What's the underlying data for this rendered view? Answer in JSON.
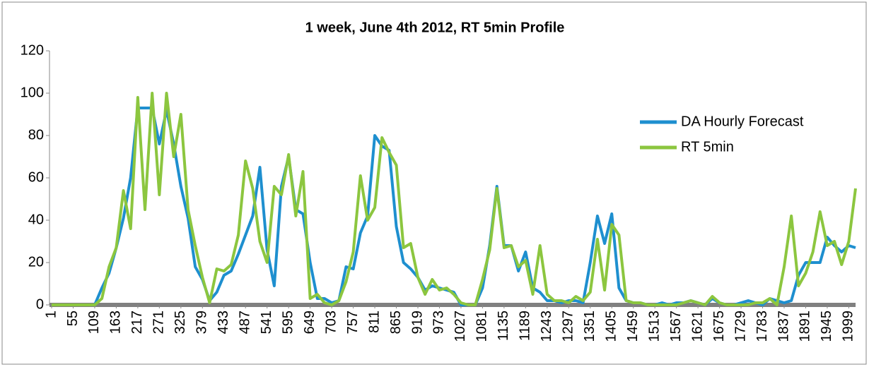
{
  "chart_data": {
    "type": "line",
    "title": "1 week, June 4th 2012, RT 5min Profile",
    "x": [
      1,
      19,
      37,
      55,
      73,
      91,
      109,
      127,
      145,
      163,
      181,
      199,
      217,
      235,
      253,
      271,
      289,
      307,
      325,
      343,
      361,
      379,
      397,
      415,
      433,
      451,
      469,
      487,
      505,
      523,
      541,
      559,
      577,
      595,
      613,
      631,
      649,
      667,
      685,
      703,
      721,
      739,
      757,
      775,
      793,
      811,
      829,
      847,
      865,
      883,
      901,
      919,
      937,
      955,
      973,
      991,
      1009,
      1027,
      1045,
      1063,
      1081,
      1099,
      1117,
      1135,
      1153,
      1171,
      1189,
      1207,
      1225,
      1243,
      1261,
      1279,
      1297,
      1315,
      1333,
      1351,
      1369,
      1387,
      1405,
      1423,
      1441,
      1459,
      1477,
      1495,
      1513,
      1531,
      1549,
      1567,
      1585,
      1603,
      1621,
      1639,
      1657,
      1675,
      1693,
      1711,
      1729,
      1747,
      1765,
      1783,
      1801,
      1819,
      1837,
      1855,
      1873,
      1891,
      1909,
      1927,
      1945,
      1963,
      1981,
      1999,
      2016
    ],
    "series": [
      {
        "name": "DA Hourly Forecast",
        "color": "#1e8fcf",
        "values": [
          0,
          0,
          0,
          0,
          0,
          0,
          0,
          8,
          15,
          27,
          41,
          60,
          93,
          93,
          93,
          76,
          92,
          76,
          56,
          41,
          18,
          12,
          2,
          6,
          14,
          16,
          24,
          33,
          42,
          65,
          26,
          9,
          56,
          70,
          45,
          43,
          20,
          3,
          3,
          1,
          2,
          18,
          17,
          34,
          42,
          80,
          75,
          73,
          37,
          20,
          17,
          13,
          7,
          9,
          8,
          7,
          6,
          0,
          0,
          0,
          8,
          28,
          56,
          28,
          28,
          16,
          25,
          8,
          6,
          2,
          2,
          1,
          2,
          2,
          1,
          20,
          42,
          29,
          43,
          8,
          2,
          1,
          1,
          0,
          0,
          1,
          0,
          1,
          1,
          2,
          1,
          0,
          3,
          1,
          0,
          0,
          1,
          2,
          1,
          0,
          3,
          2,
          1,
          2,
          14,
          20,
          20,
          20,
          32,
          28,
          25,
          28,
          27
        ]
      },
      {
        "name": "RT 5min",
        "color": "#8cc63f",
        "values": [
          0,
          0,
          0,
          0,
          0,
          0,
          0,
          3,
          18,
          27,
          54,
          36,
          98,
          45,
          100,
          52,
          100,
          70,
          90,
          45,
          28,
          13,
          1,
          17,
          16,
          19,
          33,
          68,
          55,
          30,
          20,
          56,
          52,
          71,
          42,
          63,
          3,
          5,
          1,
          0,
          2,
          11,
          25,
          61,
          40,
          46,
          79,
          72,
          66,
          27,
          29,
          13,
          5,
          12,
          7,
          8,
          5,
          1,
          0,
          0,
          12,
          26,
          55,
          27,
          28,
          18,
          21,
          5,
          28,
          5,
          2,
          2,
          1,
          4,
          2,
          6,
          31,
          7,
          38,
          33,
          2,
          1,
          1,
          0,
          0,
          0,
          0,
          0,
          1,
          2,
          1,
          0,
          4,
          1,
          0,
          0,
          0,
          0,
          1,
          1,
          3,
          0,
          18,
          42,
          9,
          15,
          25,
          44,
          28,
          30,
          19,
          30,
          55
        ]
      }
    ],
    "xlim": [
      1,
      2016
    ],
    "xticks": [
      1,
      55,
      109,
      163,
      217,
      271,
      325,
      379,
      433,
      487,
      541,
      595,
      649,
      703,
      757,
      811,
      865,
      919,
      973,
      1027,
      1081,
      1135,
      1189,
      1243,
      1297,
      1351,
      1405,
      1459,
      1513,
      1567,
      1621,
      1675,
      1729,
      1783,
      1837,
      1891,
      1945,
      1999
    ],
    "ylim": [
      0,
      120
    ],
    "yticks": [
      0,
      20,
      40,
      60,
      80,
      100,
      120
    ],
    "grid": false,
    "legend": "right"
  }
}
